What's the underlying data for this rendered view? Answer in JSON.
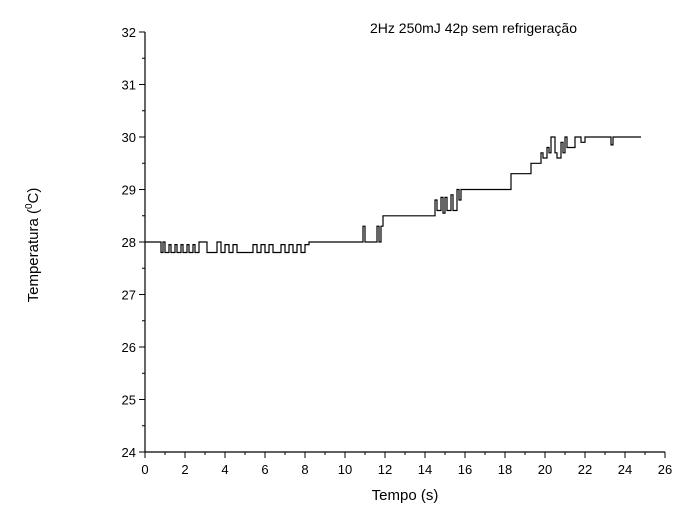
{
  "chart_data": {
    "type": "line",
    "annotation": "2Hz 250mJ 42p sem refrigeração",
    "xlabel": "Tempo (s)",
    "ylabel_main": "Temperatura (",
    "ylabel_sup": "0",
    "ylabel_end": "C)",
    "xlim": [
      0,
      26
    ],
    "ylim": [
      24,
      32
    ],
    "x_ticks": [
      "0",
      "2",
      "4",
      "6",
      "8",
      "10",
      "12",
      "14",
      "16",
      "18",
      "20",
      "22",
      "24",
      "26"
    ],
    "y_ticks": [
      "24",
      "25",
      "26",
      "27",
      "28",
      "29",
      "30",
      "31",
      "32"
    ],
    "grid": false,
    "line_color": "#000000",
    "series": [
      {
        "x": [
          0,
          0.8,
          0.8,
          0.9,
          0.9,
          1.0,
          1.0,
          1.2,
          1.2,
          1.3,
          1.3,
          1.5,
          1.5,
          1.6,
          1.6,
          1.8,
          1.8,
          1.9,
          1.9,
          2.1,
          2.1,
          2.2,
          2.2,
          2.4,
          2.4,
          2.5,
          2.5,
          2.7,
          2.7,
          3.1,
          3.1,
          3.6,
          3.6,
          3.8,
          3.8,
          4.0,
          4.0,
          4.2,
          4.2,
          4.4,
          4.4,
          4.6,
          4.6,
          5.4,
          5.4,
          5.6,
          5.6,
          5.8,
          5.8,
          6.0,
          6.0,
          6.2,
          6.2,
          6.4,
          6.4,
          6.8,
          6.8,
          7.0,
          7.0,
          7.2,
          7.2,
          7.4,
          7.4,
          7.6,
          7.6,
          7.8,
          7.8,
          8.0,
          8.0,
          8.2,
          8.2,
          10.9,
          10.9,
          11.0,
          11.0,
          11.1,
          11.1,
          11.6,
          11.6,
          11.7,
          11.7,
          11.8,
          11.8,
          11.9,
          11.9,
          12.7,
          12.7,
          14.5,
          14.5,
          14.6,
          14.6,
          14.8,
          14.8,
          14.9,
          14.9,
          15.0,
          15.0,
          15.1,
          15.1,
          15.3,
          15.3,
          15.4,
          15.4,
          15.6,
          15.6,
          15.7,
          15.7,
          15.8,
          15.8,
          16.1,
          16.1,
          17.1,
          17.1,
          18.3,
          18.3,
          19.3,
          19.3,
          19.8,
          19.8,
          19.9,
          19.9,
          20.1,
          20.1,
          20.2,
          20.2,
          20.3,
          20.3,
          20.5,
          20.5,
          20.6,
          20.6,
          20.8,
          20.8,
          20.9,
          20.9,
          21.0,
          21.0,
          21.1,
          21.1,
          21.3,
          21.3,
          21.5,
          21.5,
          21.8,
          21.8,
          22.0,
          22.0,
          22.3,
          22.3,
          23.3,
          23.3,
          23.4,
          23.4,
          24.8
        ],
        "y": [
          28.0,
          28.0,
          27.8,
          27.8,
          28.0,
          28.0,
          27.8,
          27.8,
          27.95,
          27.95,
          27.8,
          27.8,
          27.95,
          27.95,
          27.8,
          27.8,
          27.95,
          27.95,
          27.8,
          27.8,
          27.95,
          27.95,
          27.8,
          27.8,
          27.95,
          27.95,
          27.8,
          27.8,
          28.0,
          28.0,
          27.8,
          27.8,
          28.0,
          28.0,
          27.8,
          27.8,
          27.95,
          27.95,
          27.8,
          27.8,
          27.95,
          27.95,
          27.8,
          27.8,
          27.95,
          27.95,
          27.8,
          27.8,
          27.95,
          27.95,
          27.8,
          27.8,
          27.95,
          27.95,
          27.8,
          27.8,
          27.95,
          27.95,
          27.8,
          27.8,
          27.95,
          27.95,
          27.8,
          27.8,
          27.95,
          27.95,
          27.8,
          27.8,
          27.95,
          27.95,
          28.0,
          28.0,
          28.3,
          28.3,
          28.0,
          28.0,
          28.0,
          28.0,
          28.3,
          28.3,
          28.0,
          28.0,
          28.3,
          28.3,
          28.5,
          28.5,
          28.5,
          28.5,
          28.8,
          28.8,
          28.6,
          28.6,
          28.85,
          28.85,
          28.55,
          28.55,
          28.85,
          28.85,
          28.6,
          28.6,
          28.9,
          28.9,
          28.6,
          28.6,
          29.0,
          29.0,
          28.8,
          28.8,
          29.0,
          29.0,
          29.0,
          29.0,
          29.0,
          29.0,
          29.3,
          29.3,
          29.5,
          29.5,
          29.7,
          29.7,
          29.6,
          29.6,
          29.8,
          29.8,
          29.7,
          29.7,
          30.0,
          30.0,
          29.7,
          29.7,
          29.6,
          29.6,
          29.9,
          29.9,
          29.7,
          29.7,
          30.0,
          30.0,
          29.8,
          29.8,
          29.8,
          29.8,
          30.0,
          30.0,
          29.9,
          29.9,
          30.0,
          30.0,
          30.0,
          30.0,
          29.85,
          29.85,
          30.0,
          30.0
        ]
      }
    ]
  }
}
